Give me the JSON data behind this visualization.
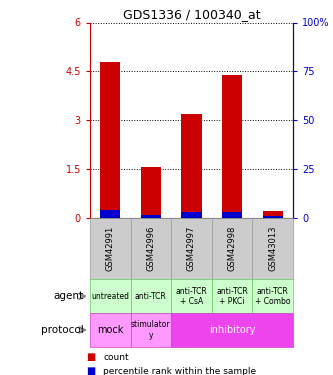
{
  "title": "GDS1336 / 100340_at",
  "samples": [
    "GSM42991",
    "GSM42996",
    "GSM42997",
    "GSM42998",
    "GSM43013"
  ],
  "count_values": [
    4.8,
    1.55,
    3.2,
    4.4,
    0.2
  ],
  "percentile_values": [
    0.22,
    0.08,
    0.18,
    0.18,
    0.05
  ],
  "ylim_left": [
    0,
    6
  ],
  "ylim_right": [
    0,
    100
  ],
  "yticks_left": [
    0,
    1.5,
    3.0,
    4.5
  ],
  "ytick_labels_left": [
    "0",
    "1.5",
    "3",
    "4.5"
  ],
  "ytick_top_left": 6.0,
  "ytick_top_label": "6",
  "yticks_right": [
    0,
    25,
    50,
    75
  ],
  "ytick_labels_right": [
    "0",
    "25",
    "50",
    "75"
  ],
  "ytick_top_right": 100,
  "ytick_top_right_label": "100%",
  "bar_color_red": "#cc0000",
  "bar_color_blue": "#0000cc",
  "agent_labels": [
    "untreated",
    "anti-TCR",
    "anti-TCR\n+ CsA",
    "anti-TCR\n+ PKCi",
    "anti-TCR\n+ Combo"
  ],
  "protocol_label_mock": "mock",
  "protocol_label_stim": "stimulator\ny",
  "protocol_label_inhib": "inhibitory",
  "agent_bg_color": "#ccffcc",
  "agent_border_color": "#66cc66",
  "protocol_light_color": "#ff99ff",
  "protocol_dark_color": "#ee44ee",
  "sample_bg_color": "#cccccc",
  "sample_border_color": "#999999",
  "left_label_agent": "agent",
  "left_label_protocol": "protocol",
  "legend_count": "count",
  "legend_pct": "percentile rank within the sample"
}
